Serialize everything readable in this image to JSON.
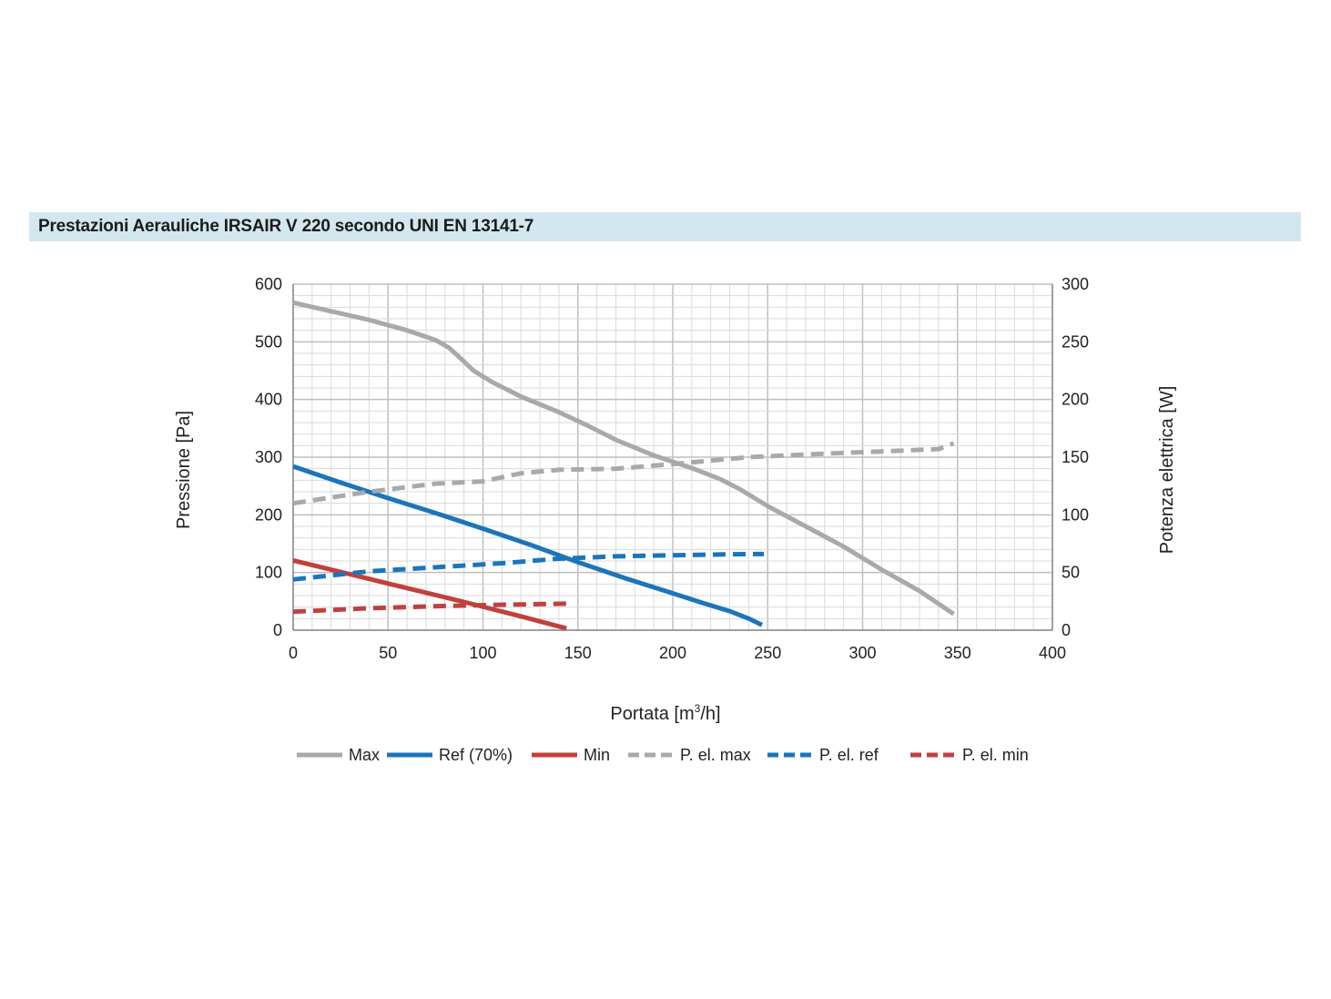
{
  "header": {
    "title": "Prestazioni Aerauliche IRSAIR V 220 secondo UNI EN 13141-7"
  },
  "chart_data": {
    "type": "line",
    "title": "Prestazioni Aerauliche IRSAIR V 220 secondo UNI EN 13141-7",
    "xlabel": "Portata [m³/h]",
    "xlabel_base": "Portata [m",
    "xlabel_sup": "3",
    "xlabel_end": "/h]",
    "ylabel": "Pressione [Pa]",
    "y2label": "Potenza elettrica [W]",
    "xlim": [
      0,
      400
    ],
    "ylim": [
      0,
      600
    ],
    "y2lim": [
      0,
      300
    ],
    "xticks": [
      0,
      50,
      100,
      150,
      200,
      250,
      300,
      350,
      400
    ],
    "yticks": [
      0,
      100,
      200,
      300,
      400,
      500,
      600
    ],
    "y2ticks": [
      0,
      50,
      100,
      150,
      200,
      250,
      300
    ],
    "grid": true,
    "legend_position": "bottom",
    "series": [
      {
        "name": "Max",
        "axis": "left",
        "style": "solid",
        "color": "#a7a9ac",
        "x": [
          0,
          20,
          40,
          60,
          75,
          82,
          88,
          95,
          105,
          120,
          140,
          155,
          170,
          190,
          210,
          225,
          235,
          250,
          270,
          290,
          310,
          330,
          348
        ],
        "y": [
          568,
          553,
          538,
          520,
          503,
          490,
          472,
          450,
          430,
          405,
          378,
          355,
          330,
          303,
          281,
          262,
          245,
          215,
          180,
          145,
          105,
          68,
          28
        ]
      },
      {
        "name": "Ref (70%)",
        "axis": "left",
        "style": "solid",
        "color": "#1a75bb",
        "x": [
          0,
          25,
          50,
          75,
          100,
          125,
          150,
          175,
          200,
          215,
          230,
          240,
          247
        ],
        "y": [
          284,
          256,
          229,
          203,
          176,
          148,
          118,
          90,
          64,
          48,
          33,
          20,
          9
        ]
      },
      {
        "name": "Min",
        "axis": "left",
        "style": "solid",
        "color": "#c1403e",
        "x": [
          0,
          30,
          60,
          90,
          120,
          144
        ],
        "y": [
          121,
          97,
          73,
          49,
          24,
          3
        ]
      },
      {
        "name": "P. el. max",
        "axis": "right",
        "style": "dashed",
        "color": "#a7a9ac",
        "x": [
          0,
          20,
          40,
          60,
          75,
          100,
          120,
          140,
          170,
          200,
          240,
          280,
          310,
          340,
          348
        ],
        "y": [
          110,
          115,
          120,
          124,
          127,
          129,
          136,
          139,
          140,
          144,
          150,
          153,
          155,
          157,
          162
        ]
      },
      {
        "name": "P. el. ref",
        "axis": "right",
        "style": "dashed",
        "color": "#1a75bb",
        "x": [
          0,
          40,
          80,
          110,
          140,
          170,
          200,
          240,
          248
        ],
        "y": [
          44,
          51,
          55,
          58,
          62,
          64,
          65,
          66,
          66
        ]
      },
      {
        "name": "P. el. min",
        "axis": "right",
        "style": "dashed",
        "color": "#c1403e",
        "x": [
          0,
          40,
          80,
          110,
          144
        ],
        "y": [
          16,
          19,
          21,
          22,
          23
        ]
      }
    ]
  }
}
